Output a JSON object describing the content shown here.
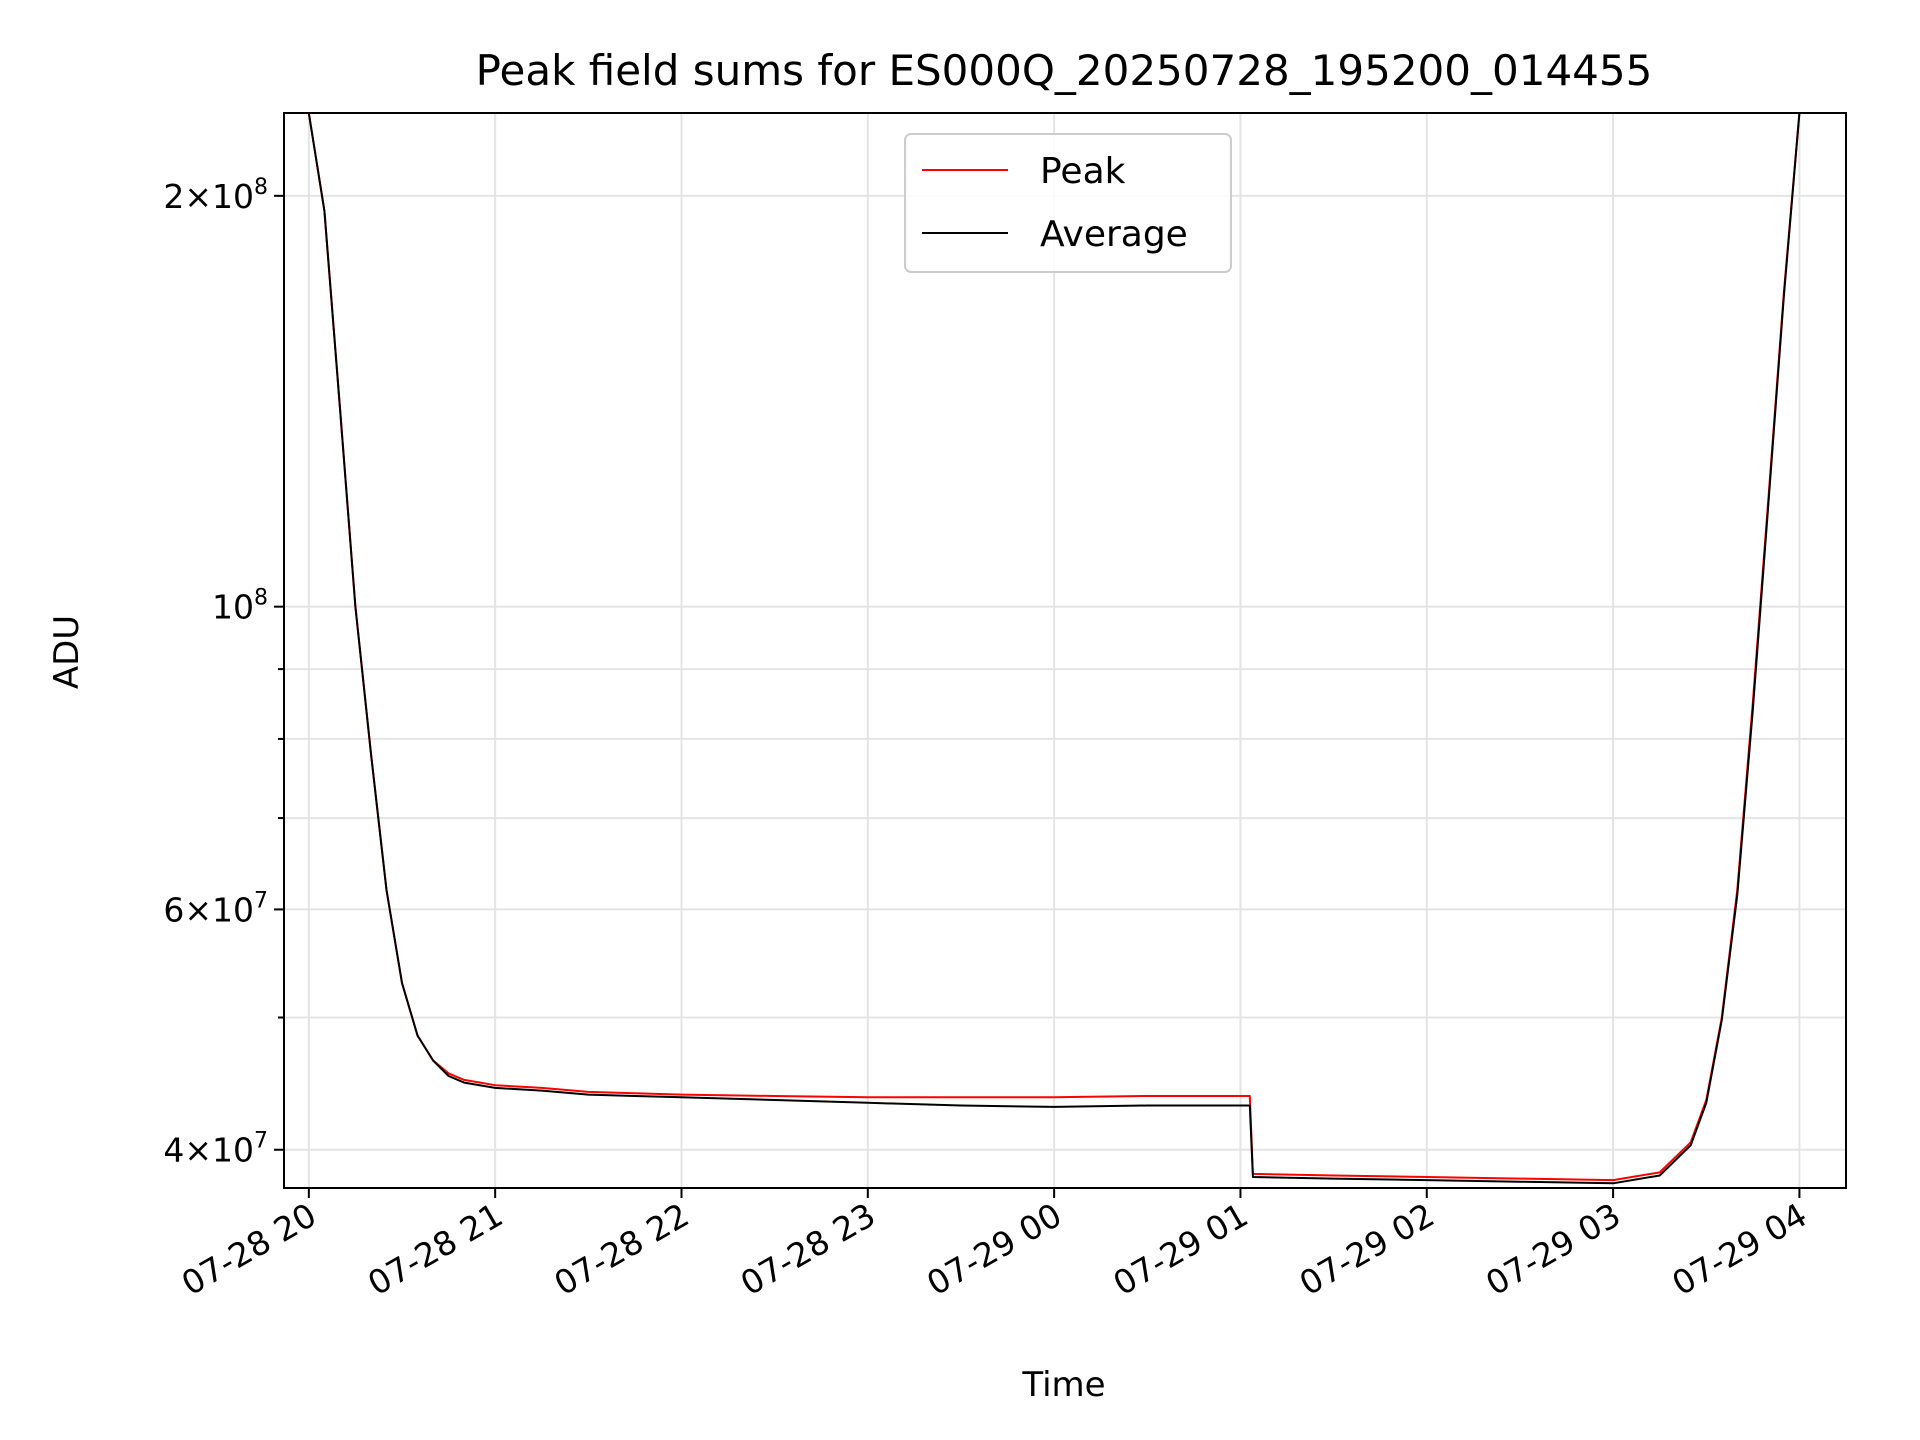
{
  "chart_data": {
    "type": "line",
    "title": "Peak field sums for ES000Q_20250728_195200_014455",
    "xlabel": "Time",
    "ylabel": "ADU",
    "y_scale": "log",
    "ylim": [
      37500000,
      230000000
    ],
    "xlim": [
      "2025-07-28 19:52",
      "2025-07-29 04:15"
    ],
    "grid": true,
    "legend_position": "upper center",
    "x_ticks": [
      {
        "t": "2025-07-28 20:00",
        "label": "07-28 20"
      },
      {
        "t": "2025-07-28 21:00",
        "label": "07-28 21"
      },
      {
        "t": "2025-07-28 22:00",
        "label": "07-28 22"
      },
      {
        "t": "2025-07-28 23:00",
        "label": "07-28 23"
      },
      {
        "t": "2025-07-29 00:00",
        "label": "07-29 00"
      },
      {
        "t": "2025-07-29 01:00",
        "label": "07-29 01"
      },
      {
        "t": "2025-07-29 02:00",
        "label": "07-29 02"
      },
      {
        "t": "2025-07-29 03:00",
        "label": "07-29 03"
      },
      {
        "t": "2025-07-29 04:00",
        "label": "07-29 04"
      }
    ],
    "y_ticks_major": [
      {
        "v": 40000000,
        "mant": "4",
        "exp": "7"
      },
      {
        "v": 60000000,
        "mant": "6",
        "exp": "7"
      },
      {
        "v": 100000000,
        "mant": "",
        "exp": "8"
      },
      {
        "v": 200000000,
        "mant": "2",
        "exp": "8"
      }
    ],
    "y_ticks_minor": [
      50000000,
      70000000,
      80000000,
      90000000
    ],
    "series": [
      {
        "name": "Peak",
        "color": "#ff0000",
        "x": [
          "2025-07-28 19:52",
          "2025-07-28 20:00",
          "2025-07-28 20:05",
          "2025-07-28 20:10",
          "2025-07-28 20:15",
          "2025-07-28 20:20",
          "2025-07-28 20:25",
          "2025-07-28 20:30",
          "2025-07-28 20:35",
          "2025-07-28 20:40",
          "2025-07-28 20:45",
          "2025-07-28 20:50",
          "2025-07-28 21:00",
          "2025-07-28 21:15",
          "2025-07-28 21:30",
          "2025-07-28 21:45",
          "2025-07-28 22:00",
          "2025-07-28 22:30",
          "2025-07-28 23:00",
          "2025-07-28 23:30",
          "2025-07-29 00:00",
          "2025-07-29 00:30",
          "2025-07-29 01:03",
          "2025-07-29 01:04",
          "2025-07-29 01:30",
          "2025-07-29 02:00",
          "2025-07-29 02:30",
          "2025-07-29 03:00",
          "2025-07-29 03:15",
          "2025-07-29 03:25",
          "2025-07-29 03:30",
          "2025-07-29 03:35",
          "2025-07-29 03:40",
          "2025-07-29 03:45",
          "2025-07-29 03:50",
          "2025-07-29 03:55",
          "2025-07-29 04:00",
          "2025-07-29 04:15"
        ],
        "y": [
          230000000,
          230000000,
          195000000,
          140000000,
          100000000,
          78000000,
          62000000,
          53000000,
          48500000,
          46500000,
          45500000,
          45000000,
          44600000,
          44400000,
          44100000,
          44000000,
          43900000,
          43800000,
          43700000,
          43700000,
          43700000,
          43800000,
          43800000,
          38400000,
          38300000,
          38200000,
          38100000,
          38000000,
          38500000,
          40500000,
          43500000,
          50000000,
          62000000,
          85000000,
          120000000,
          170000000,
          230000000,
          230000000
        ]
      },
      {
        "name": "Average",
        "color": "#000000",
        "x": [
          "2025-07-28 19:52",
          "2025-07-28 20:00",
          "2025-07-28 20:05",
          "2025-07-28 20:10",
          "2025-07-28 20:15",
          "2025-07-28 20:20",
          "2025-07-28 20:25",
          "2025-07-28 20:30",
          "2025-07-28 20:35",
          "2025-07-28 20:40",
          "2025-07-28 20:45",
          "2025-07-28 20:50",
          "2025-07-28 21:00",
          "2025-07-28 21:15",
          "2025-07-28 21:30",
          "2025-07-28 21:45",
          "2025-07-28 22:00",
          "2025-07-28 22:30",
          "2025-07-28 23:00",
          "2025-07-28 23:30",
          "2025-07-29 00:00",
          "2025-07-29 00:30",
          "2025-07-29 01:03",
          "2025-07-29 01:04",
          "2025-07-29 01:30",
          "2025-07-29 02:00",
          "2025-07-29 02:30",
          "2025-07-29 03:00",
          "2025-07-29 03:15",
          "2025-07-29 03:25",
          "2025-07-29 03:30",
          "2025-07-29 03:35",
          "2025-07-29 03:40",
          "2025-07-29 03:45",
          "2025-07-29 03:50",
          "2025-07-29 03:55",
          "2025-07-29 04:00",
          "2025-07-29 04:15"
        ],
        "y": [
          230000000,
          230000000,
          195000000,
          140000000,
          100000000,
          78000000,
          62000000,
          53000000,
          48500000,
          46500000,
          45300000,
          44800000,
          44400000,
          44200000,
          43900000,
          43800000,
          43700000,
          43500000,
          43300000,
          43100000,
          43000000,
          43100000,
          43100000,
          38200000,
          38100000,
          38000000,
          37900000,
          37800000,
          38300000,
          40300000,
          43300000,
          49800000,
          61500000,
          84000000,
          119000000,
          169000000,
          230000000,
          230000000
        ]
      }
    ]
  }
}
